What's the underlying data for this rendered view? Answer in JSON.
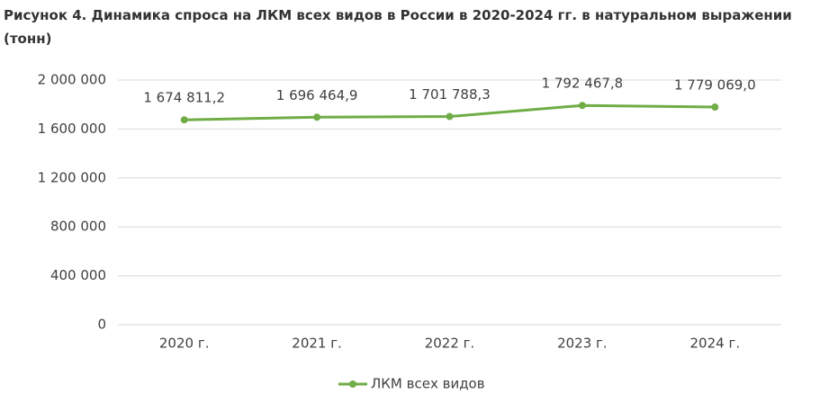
{
  "chart_data": {
    "type": "line",
    "title": "Рисунок 4. Динамика спроса на ЛКМ всех видов в России в 2020-2024 гг. в натуральном выражении (тонн)",
    "categories": [
      "2020 г.",
      "2021 г.",
      "2022 г.",
      "2023 г.",
      "2024 г."
    ],
    "series": [
      {
        "name": "ЛКМ всех видов",
        "color": "#70ad47",
        "values": [
          1674811.2,
          1696464.9,
          1701788.3,
          1792467.8,
          1779069.0
        ],
        "value_labels": [
          "1 674 811,2",
          "1 696 464,9",
          "1 701 788,3",
          "1 792 467,8",
          "1 779 069,0"
        ]
      }
    ],
    "ylim": [
      0,
      2000000
    ],
    "yticks": [
      0,
      {
        "value": 400000,
        "label": "400 000"
      },
      {
        "value": 800000,
        "label": "800 000"
      },
      {
        "value": 1200000,
        "label": "1 200 000"
      },
      {
        "value": 1600000,
        "label": "1 600 000"
      },
      {
        "value": 2000000,
        "label": "2 000 000"
      }
    ],
    "grid": true,
    "legend": "bottom"
  }
}
